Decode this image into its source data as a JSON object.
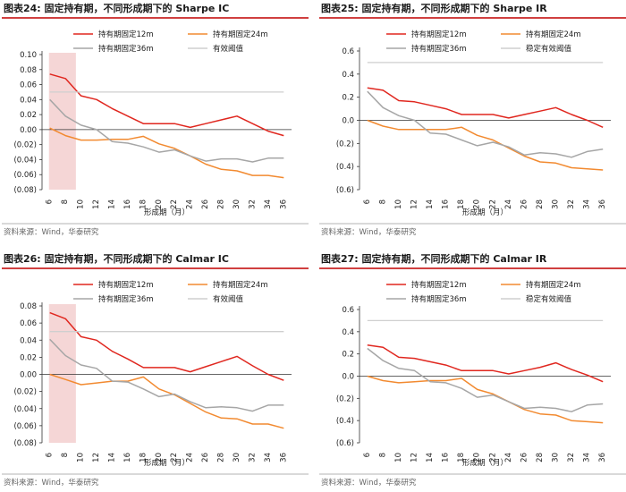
{
  "colors": {
    "holding_12m": "#e0271f",
    "holding_24m": "#f28a30",
    "holding_36m": "#a6a6a6",
    "threshold": "#cfcfcf",
    "highlight": "#f5d6d6",
    "title_rule": "#c00000"
  },
  "chart_data": [
    {
      "type": "line",
      "title": "图表24:   固定持有期，不同形成期下的 Sharpe IC",
      "source": "资料来源：Wind，华泰研究",
      "xlabel": "形成期（月）",
      "ylabel": "",
      "x_ticks": [
        "6",
        "8",
        "10",
        "12",
        "14",
        "16",
        "18",
        "20",
        "22",
        "24",
        "26",
        "28",
        "30",
        "32",
        "34",
        "36"
      ],
      "y_ticks": [
        "0.10",
        "0.08",
        "0.06",
        "0.04",
        "0.02",
        "0.00",
        "(0.02)",
        "(0.04)",
        "(0.06)",
        "(0.08)"
      ],
      "ylim": [
        -0.08,
        0.1
      ],
      "highlight_x": [
        6,
        9
      ],
      "legend": [
        "持有期固定12m",
        "持有期固定24m",
        "持有期固定36m",
        "有效阈值"
      ],
      "x": [
        6,
        8,
        10,
        12,
        14,
        16,
        18,
        20,
        22,
        24,
        26,
        28,
        30,
        32,
        34,
        36
      ],
      "series": [
        {
          "name": "持有期固定12m",
          "color_key": "holding_12m",
          "values": [
            0.074,
            0.068,
            0.045,
            0.04,
            0.028,
            0.018,
            0.008,
            0.008,
            0.008,
            0.003,
            0.008,
            0.013,
            0.018,
            0.008,
            -0.002,
            -0.008
          ]
        },
        {
          "name": "持有期固定24m",
          "color_key": "holding_24m",
          "values": [
            0.002,
            -0.008,
            -0.014,
            -0.014,
            -0.013,
            -0.013,
            -0.009,
            -0.019,
            -0.025,
            -0.035,
            -0.046,
            -0.053,
            -0.055,
            -0.061,
            -0.061,
            -0.064
          ]
        },
        {
          "name": "持有期固定36m",
          "color_key": "holding_36m",
          "values": [
            0.04,
            0.018,
            0.006,
            0.0,
            -0.016,
            -0.018,
            -0.023,
            -0.03,
            -0.027,
            -0.035,
            -0.042,
            -0.039,
            -0.039,
            -0.043,
            -0.038,
            -0.038
          ]
        },
        {
          "name": "有效阈值",
          "color_key": "threshold",
          "values": [
            0.05,
            0.05,
            0.05,
            0.05,
            0.05,
            0.05,
            0.05,
            0.05,
            0.05,
            0.05,
            0.05,
            0.05,
            0.05,
            0.05,
            0.05,
            0.05
          ]
        }
      ]
    },
    {
      "type": "line",
      "title": "图表25:   固定持有期，不同形成期下的 Sharpe IR",
      "source": "资料来源：Wind，华泰研究",
      "xlabel": "形成期（月）",
      "ylabel": "",
      "x_ticks": [
        "6",
        "8",
        "10",
        "12",
        "14",
        "16",
        "18",
        "20",
        "22",
        "24",
        "26",
        "28",
        "30",
        "32",
        "34",
        "36"
      ],
      "y_ticks": [
        "0.6",
        "0.4",
        "0.2",
        "0.0",
        "(0.2)",
        "(0.4)",
        "(0.6)"
      ],
      "ylim": [
        -0.6,
        0.6
      ],
      "legend": [
        "持有期固定12m",
        "持有期固定24m",
        "持有期固定36m",
        "稳定有效阈值"
      ],
      "x": [
        6,
        8,
        10,
        12,
        14,
        16,
        18,
        20,
        22,
        24,
        26,
        28,
        30,
        32,
        34,
        36
      ],
      "series": [
        {
          "name": "持有期固定12m",
          "color_key": "holding_12m",
          "values": [
            0.28,
            0.26,
            0.17,
            0.16,
            0.13,
            0.1,
            0.05,
            0.05,
            0.05,
            0.02,
            0.05,
            0.08,
            0.11,
            0.05,
            0.0,
            -0.06
          ]
        },
        {
          "name": "持有期固定24m",
          "color_key": "holding_24m",
          "values": [
            0.0,
            -0.05,
            -0.08,
            -0.08,
            -0.08,
            -0.08,
            -0.06,
            -0.13,
            -0.17,
            -0.24,
            -0.31,
            -0.36,
            -0.37,
            -0.41,
            -0.42,
            -0.43
          ]
        },
        {
          "name": "持有期固定36m",
          "color_key": "holding_36m",
          "values": [
            0.25,
            0.11,
            0.04,
            0.0,
            -0.11,
            -0.12,
            -0.17,
            -0.22,
            -0.19,
            -0.23,
            -0.3,
            -0.28,
            -0.29,
            -0.32,
            -0.27,
            -0.25
          ]
        },
        {
          "name": "稳定有效阈值",
          "color_key": "threshold",
          "values": [
            0.5,
            0.5,
            0.5,
            0.5,
            0.5,
            0.5,
            0.5,
            0.5,
            0.5,
            0.5,
            0.5,
            0.5,
            0.5,
            0.5,
            0.5,
            0.5
          ]
        }
      ]
    },
    {
      "type": "line",
      "title": "图表26:   固定持有期，不同形成期下的 Calmar IC",
      "source": "资料来源：Wind，华泰研究",
      "xlabel": "形成期（月）",
      "ylabel": "",
      "x_ticks": [
        "6",
        "8",
        "10",
        "12",
        "14",
        "16",
        "18",
        "20",
        "22",
        "24",
        "26",
        "28",
        "30",
        "32",
        "34",
        "36"
      ],
      "y_ticks": [
        "0.08",
        "0.06",
        "0.04",
        "0.02",
        "0.00",
        "(0.02)",
        "(0.04)",
        "(0.06)",
        "(0.08)"
      ],
      "ylim": [
        -0.08,
        0.08
      ],
      "highlight_x": [
        6,
        9
      ],
      "legend": [
        "持有期固定12m",
        "持有期固定24m",
        "持有期固定36m",
        "有效阈值"
      ],
      "x": [
        6,
        8,
        10,
        12,
        14,
        16,
        18,
        20,
        22,
        24,
        26,
        28,
        30,
        32,
        34,
        36
      ],
      "series": [
        {
          "name": "持有期固定12m",
          "color_key": "holding_12m",
          "values": [
            0.072,
            0.065,
            0.044,
            0.04,
            0.027,
            0.018,
            0.008,
            0.008,
            0.008,
            0.003,
            0.009,
            0.015,
            0.021,
            0.01,
            0.0,
            -0.007
          ]
        },
        {
          "name": "持有期固定24m",
          "color_key": "holding_24m",
          "values": [
            0.0,
            -0.006,
            -0.012,
            -0.01,
            -0.008,
            -0.008,
            -0.003,
            -0.017,
            -0.024,
            -0.034,
            -0.044,
            -0.051,
            -0.052,
            -0.058,
            -0.058,
            -0.063
          ]
        },
        {
          "name": "持有期固定36m",
          "color_key": "holding_36m",
          "values": [
            0.041,
            0.022,
            0.011,
            0.007,
            -0.008,
            -0.009,
            -0.017,
            -0.026,
            -0.023,
            -0.032,
            -0.039,
            -0.038,
            -0.039,
            -0.043,
            -0.036,
            -0.036
          ]
        },
        {
          "name": "有效阈值",
          "color_key": "threshold",
          "values": [
            0.05,
            0.05,
            0.05,
            0.05,
            0.05,
            0.05,
            0.05,
            0.05,
            0.05,
            0.05,
            0.05,
            0.05,
            0.05,
            0.05,
            0.05,
            0.05
          ]
        }
      ]
    },
    {
      "type": "line",
      "title": "图表27:   固定持有期，不同形成期下的 Calmar IR",
      "source": "资料来源：Wind，华泰研究",
      "xlabel": "形成期（月）",
      "ylabel": "",
      "x_ticks": [
        "6",
        "8",
        "10",
        "12",
        "14",
        "16",
        "18",
        "20",
        "22",
        "24",
        "26",
        "28",
        "30",
        "32",
        "34",
        "36"
      ],
      "y_ticks": [
        "0.6",
        "0.4",
        "0.2",
        "0.0",
        "(0.2)",
        "(0.4)",
        "(0.6)"
      ],
      "ylim": [
        -0.6,
        0.6
      ],
      "legend": [
        "持有期固定12m",
        "持有期固定24m",
        "持有期固定36m",
        "稳定有效阈值"
      ],
      "x": [
        6,
        8,
        10,
        12,
        14,
        16,
        18,
        20,
        22,
        24,
        26,
        28,
        30,
        32,
        34,
        36
      ],
      "series": [
        {
          "name": "持有期固定12m",
          "color_key": "holding_12m",
          "values": [
            0.28,
            0.26,
            0.17,
            0.16,
            0.13,
            0.1,
            0.05,
            0.05,
            0.05,
            0.02,
            0.05,
            0.08,
            0.12,
            0.06,
            0.01,
            -0.05
          ]
        },
        {
          "name": "持有期固定24m",
          "color_key": "holding_24m",
          "values": [
            0.0,
            -0.04,
            -0.06,
            -0.05,
            -0.04,
            -0.04,
            -0.02,
            -0.12,
            -0.16,
            -0.23,
            -0.3,
            -0.34,
            -0.35,
            -0.4,
            -0.41,
            -0.42
          ]
        },
        {
          "name": "持有期固定36m",
          "color_key": "holding_36m",
          "values": [
            0.25,
            0.14,
            0.07,
            0.05,
            -0.05,
            -0.06,
            -0.11,
            -0.19,
            -0.17,
            -0.23,
            -0.29,
            -0.28,
            -0.29,
            -0.32,
            -0.26,
            -0.25
          ]
        },
        {
          "name": "稳定有效阈值",
          "color_key": "threshold",
          "values": [
            0.5,
            0.5,
            0.5,
            0.5,
            0.5,
            0.5,
            0.5,
            0.5,
            0.5,
            0.5,
            0.5,
            0.5,
            0.5,
            0.5,
            0.5,
            0.5
          ]
        }
      ]
    }
  ]
}
